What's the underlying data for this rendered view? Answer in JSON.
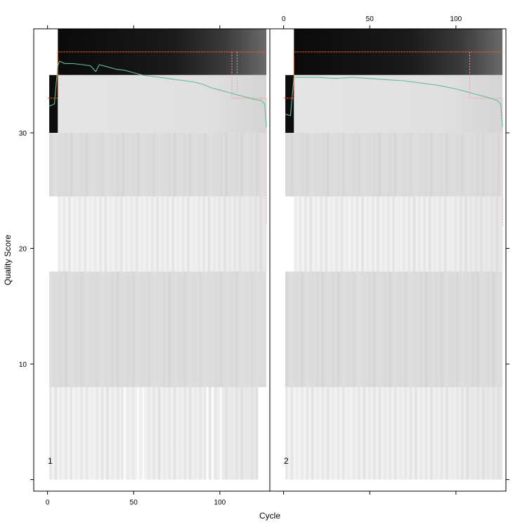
{
  "chart_data": {
    "type": "heatmap",
    "title": "",
    "xlabel": "Cycle",
    "ylabel": "Quality Score",
    "xlim": [
      -8,
      129
    ],
    "ylim": [
      -1,
      39
    ],
    "x_ticks": [
      0,
      50,
      100
    ],
    "y_ticks": [
      10,
      20,
      30
    ],
    "panels": [
      {
        "name": "1",
        "bands": [
          {
            "y0": 35,
            "y1": 39,
            "x0": 6,
            "x1": 127,
            "shade": "dark-gradient"
          },
          {
            "y0": 30,
            "y1": 35,
            "x0": 1,
            "x1": 6,
            "shade": "black"
          },
          {
            "y0": 30,
            "y1": 35,
            "x0": 6,
            "x1": 127,
            "shade": "light-grey"
          },
          {
            "y0": 24.5,
            "y1": 30,
            "x0": 1,
            "x1": 127,
            "shade": "mid-grey"
          },
          {
            "y0": 18,
            "y1": 24.5,
            "x0": 6,
            "x1": 127,
            "shade": "very-light-grey"
          },
          {
            "y0": 8,
            "y1": 18,
            "x0": 1,
            "x1": 127,
            "shade": "mid-grey"
          },
          {
            "y0": 0,
            "y1": 8,
            "x0": 1,
            "x1": 122,
            "shade": "very-light-grey"
          }
        ],
        "mean_quality": {
          "x": [
            1,
            4,
            6,
            7,
            10,
            15,
            20,
            25,
            28,
            30,
            35,
            40,
            45,
            50,
            55,
            60,
            65,
            70,
            75,
            80,
            85,
            90,
            95,
            100,
            105,
            110,
            115,
            120,
            124,
            126,
            127
          ],
          "y": [
            32.3,
            32.5,
            35.8,
            36.2,
            36.0,
            36.0,
            35.9,
            35.8,
            35.3,
            35.9,
            35.7,
            35.5,
            35.4,
            35.2,
            35.0,
            34.9,
            34.8,
            34.7,
            34.6,
            34.5,
            34.4,
            34.2,
            33.9,
            33.7,
            33.5,
            33.3,
            33.1,
            32.9,
            32.8,
            32.5,
            30.5
          ]
        },
        "median_quality": {
          "x": [
            0,
            6,
            6,
            127
          ],
          "y": [
            33,
            33,
            37,
            37
          ]
        },
        "quartile_25": {
          "x": [
            107,
            107,
            127,
            127
          ],
          "y": [
            37,
            33,
            33,
            22
          ]
        },
        "quartile_75": {
          "x": [
            110,
            110,
            127
          ],
          "y": [
            37,
            33,
            33
          ]
        }
      },
      {
        "name": "2",
        "bands": [
          {
            "y0": 35,
            "y1": 39,
            "x0": 6,
            "x1": 127,
            "shade": "dark-gradient"
          },
          {
            "y0": 30,
            "y1": 35,
            "x0": 1,
            "x1": 6,
            "shade": "black"
          },
          {
            "y0": 30,
            "y1": 35,
            "x0": 6,
            "x1": 127,
            "shade": "light-grey"
          },
          {
            "y0": 24.5,
            "y1": 30,
            "x0": 1,
            "x1": 127,
            "shade": "mid-grey"
          },
          {
            "y0": 18,
            "y1": 24.5,
            "x0": 6,
            "x1": 127,
            "shade": "very-light-grey"
          },
          {
            "y0": 8,
            "y1": 18,
            "x0": 1,
            "x1": 127,
            "shade": "mid-grey"
          },
          {
            "y0": 0,
            "y1": 8,
            "x0": 1,
            "x1": 127,
            "shade": "very-light-grey"
          }
        ],
        "mean_quality": {
          "x": [
            1,
            4,
            6,
            10,
            20,
            30,
            40,
            50,
            60,
            70,
            80,
            90,
            100,
            105,
            110,
            115,
            120,
            124,
            126,
            127
          ],
          "y": [
            31.6,
            31.5,
            34.8,
            34.8,
            34.8,
            34.7,
            34.8,
            34.7,
            34.6,
            34.5,
            34.3,
            34.1,
            33.8,
            33.6,
            33.4,
            33.2,
            33.0,
            32.8,
            32.5,
            30.5
          ]
        },
        "median_quality": {
          "x": [
            0,
            6,
            6,
            127
          ],
          "y": [
            33,
            33,
            37,
            37
          ]
        },
        "quartile_25": {
          "x": [
            108,
            108,
            127,
            127
          ],
          "y": [
            37,
            33,
            33,
            22
          ]
        }
      }
    ],
    "colors": {
      "mean_line": "#66bb99",
      "median_line": "#e06030",
      "quartile_line": "#f0a0a0",
      "panel_border": "#000000"
    }
  }
}
